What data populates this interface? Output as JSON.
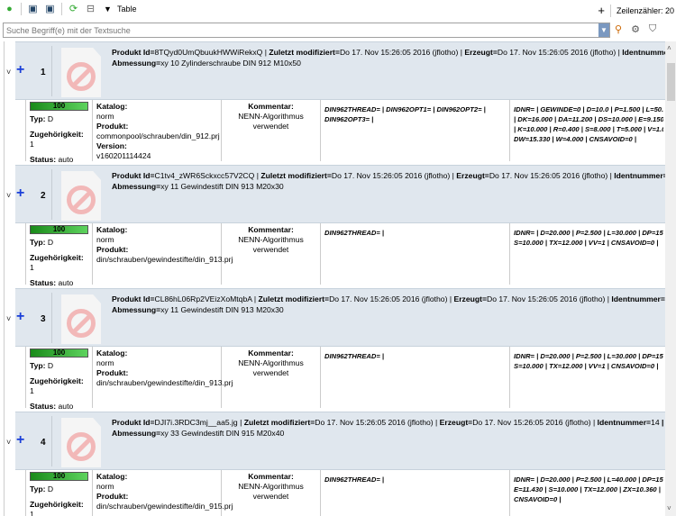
{
  "toolbar": {
    "table_label": "Table",
    "row_counter": "Zeilenzähler: 20",
    "icons": [
      "add-circle-icon",
      "export-icon",
      "export-image-icon",
      "refresh-icon",
      "collapse-icon",
      "dropdown-triangle-icon",
      "plus-icon"
    ]
  },
  "search": {
    "placeholder": "Suche Begriff(e) mit der Textsuche"
  },
  "labels": {
    "produkt_id": "Produkt Id=",
    "zuletzt": "Zuletzt modifiziert=",
    "erzeugt": "Erzeugt=",
    "ident": "Identnummer=",
    "abmessung": "Abmessung=",
    "typ": "Typ:",
    "zug": "Zugehörigkeit:",
    "status": "Status:",
    "katalog": "Katalog:",
    "produkt": "Produkt:",
    "version": "Version:",
    "kommentar": "Kommentar:"
  },
  "rows": [
    {
      "num": "1",
      "id": "8TQyd0UmQbuukHWWiRekxQ",
      "mod": "Do 17. Nov 15:26:05 2016 (jflotho)",
      "erz": "Do 17. Nov 15:26:05 2016 (jflotho)",
      "ident": "20",
      "tail": " | Norm",
      "abm": "xy 10 Zylinderschraube DIN 912 M10x50",
      "progress": "100",
      "typ": "D",
      "zug": "1",
      "status": "auto",
      "katalog": "norm",
      "produkt": "commonpool/schrauben/din_912.prj",
      "version": "v160201114424",
      "kommentar": "NENN-Algorithmus verwendet",
      "din": "DIN962THREAD= | DIN962OPT1= | DIN962OPT2= | DIN962OPT3= |",
      "params": [
        "IDNR= | GEWINDE=0 | D=10.0 | P=1.500 | L=50.0",
        "| DK=16.000 | DA=11.200 | DS=10.000 | E=9.150 |",
        "| K=10.000 | R=0.400 | S=8.000 | T=5.000 | V=1.00",
        "DW=15.330 | W=4.000 | CNSAVOID=0 |"
      ]
    },
    {
      "num": "2",
      "id": "C1tv4_zWR6Sckxcc57V2CQ",
      "mod": "Do 17. Nov 15:26:05 2016 (jflotho)",
      "erz": "Do 17. Nov 15:26:05 2016 (jflotho)",
      "ident": "3",
      "tail": " | Norm-",
      "abm": "xy 11 Gewindestift DIN 913 M20x30",
      "progress": "100",
      "typ": "D",
      "zug": "1",
      "status": "auto",
      "katalog": "norm",
      "produkt": "din/schrauben/gewindestifte/din_913.prj",
      "kommentar": "NENN-Algorithmus verwendet",
      "din": "DIN962THREAD= |",
      "params": [
        "IDNR= | D=20.000 | P=2.500 | L=30.000 | DP=15.0",
        "S=10.000 | TX=12.000 | VV=1 | CNSAVOID=0 |"
      ]
    },
    {
      "num": "3",
      "id": "CL86hL06Rp2VEizXoMtqbA",
      "mod": "Do 17. Nov 15:26:05 2016 (jflotho)",
      "erz": "Do 17. Nov 15:26:05 2016 (jflotho)",
      "ident": "4",
      "tail": " | Norm-",
      "abm": "xy 11 Gewindestift DIN 913 M20x30",
      "progress": "100",
      "typ": "D",
      "zug": "1",
      "status": "auto",
      "katalog": "norm",
      "produkt": "din/schrauben/gewindestifte/din_913.prj",
      "kommentar": "NENN-Algorithmus verwendet",
      "din": "DIN962THREAD= |",
      "params": [
        "IDNR= | D=20.000 | P=2.500 | L=30.000 | DP=15.0",
        "S=10.000 | TX=12.000 | VV=1 | CNSAVOID=0 |"
      ]
    },
    {
      "num": "4",
      "id": "DJI7i.3RDC3mj__aa5.jg",
      "mod": "Do 17. Nov 15:26:05 2016 (jflotho)",
      "erz": "Do 17. Nov 15:26:05 2016 (jflotho)",
      "ident": "14",
      "tail": " | Norm-",
      "abm": "xy 33 Gewindestift DIN 915 M20x40",
      "progress": "100",
      "typ": "D",
      "zug": "1",
      "katalog": "norm",
      "produkt": "din/schrauben/gewindestifte/din_915.prj",
      "kommentar": "NENN-Algorithmus verwendet",
      "din": "DIN962THREAD= |",
      "params": [
        "IDNR= | D=20.000 | P=2.500 | L=40.000 | DP=15.0",
        "E=11.430 | S=10.000 | TX=12.000 | ZX=10.360 |",
        "CNSAVOID=0 |"
      ]
    }
  ]
}
